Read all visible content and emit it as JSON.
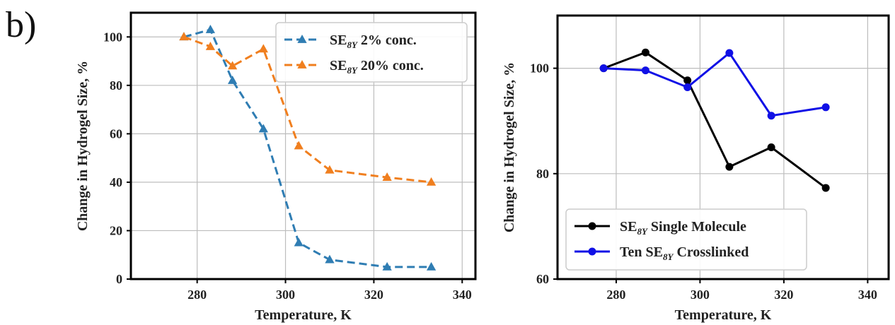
{
  "panel_label": "b)",
  "chart_data": [
    {
      "type": "line",
      "xlabel": "Temperature, K",
      "ylabel": "Change in Hydrogel Size, %",
      "xlim": [
        265,
        343
      ],
      "ylim": [
        0,
        110
      ],
      "xticks": [
        280,
        300,
        320,
        340
      ],
      "yticks": [
        0,
        20,
        40,
        60,
        80,
        100
      ],
      "grid": true,
      "legend_position": "top-right",
      "series": [
        {
          "name_main": "SE",
          "name_sub": "8Y",
          "name_rest": " 2% conc.",
          "color": "#2f7db3",
          "line_style": "dashed",
          "marker": "triangle",
          "x": [
            277,
            283,
            288,
            295,
            303,
            310,
            323,
            333
          ],
          "y": [
            100,
            103,
            82,
            62,
            15,
            8,
            5,
            5
          ]
        },
        {
          "name_main": "SE",
          "name_sub": "8Y",
          "name_rest": " 20% conc.",
          "color": "#f07f1f",
          "line_style": "dashed",
          "marker": "triangle",
          "x": [
            277,
            283,
            288,
            295,
            303,
            310,
            323,
            333
          ],
          "y": [
            100,
            96,
            88,
            95,
            55,
            45,
            42,
            40
          ]
        }
      ]
    },
    {
      "type": "line",
      "xlabel": "Temperature, K",
      "ylabel": "Change in Hydrogel Size, %",
      "xlim": [
        266,
        345
      ],
      "ylim": [
        60,
        110
      ],
      "xticks": [
        280,
        300,
        320,
        340
      ],
      "yticks": [
        60,
        80,
        100
      ],
      "grid": true,
      "legend_position": "bottom-left",
      "series": [
        {
          "name_main": "SE",
          "name_sub": "8Y",
          "name_rest": " Single Molecule",
          "name_prefix": "",
          "color": "#000000",
          "line_style": "solid",
          "marker": "circle",
          "x": [
            277,
            287,
            297,
            307,
            317,
            330
          ],
          "y": [
            100,
            103,
            97.7,
            81.3,
            85,
            77.3
          ]
        },
        {
          "name_prefix": "Ten ",
          "name_main": "SE",
          "name_sub": "8Y",
          "name_rest": " Crosslinked",
          "color": "#1010e6",
          "line_style": "solid",
          "marker": "circle",
          "x": [
            277,
            287,
            297,
            307,
            317,
            330
          ],
          "y": [
            100,
            99.6,
            96.4,
            102.9,
            91,
            92.6
          ]
        }
      ]
    }
  ]
}
